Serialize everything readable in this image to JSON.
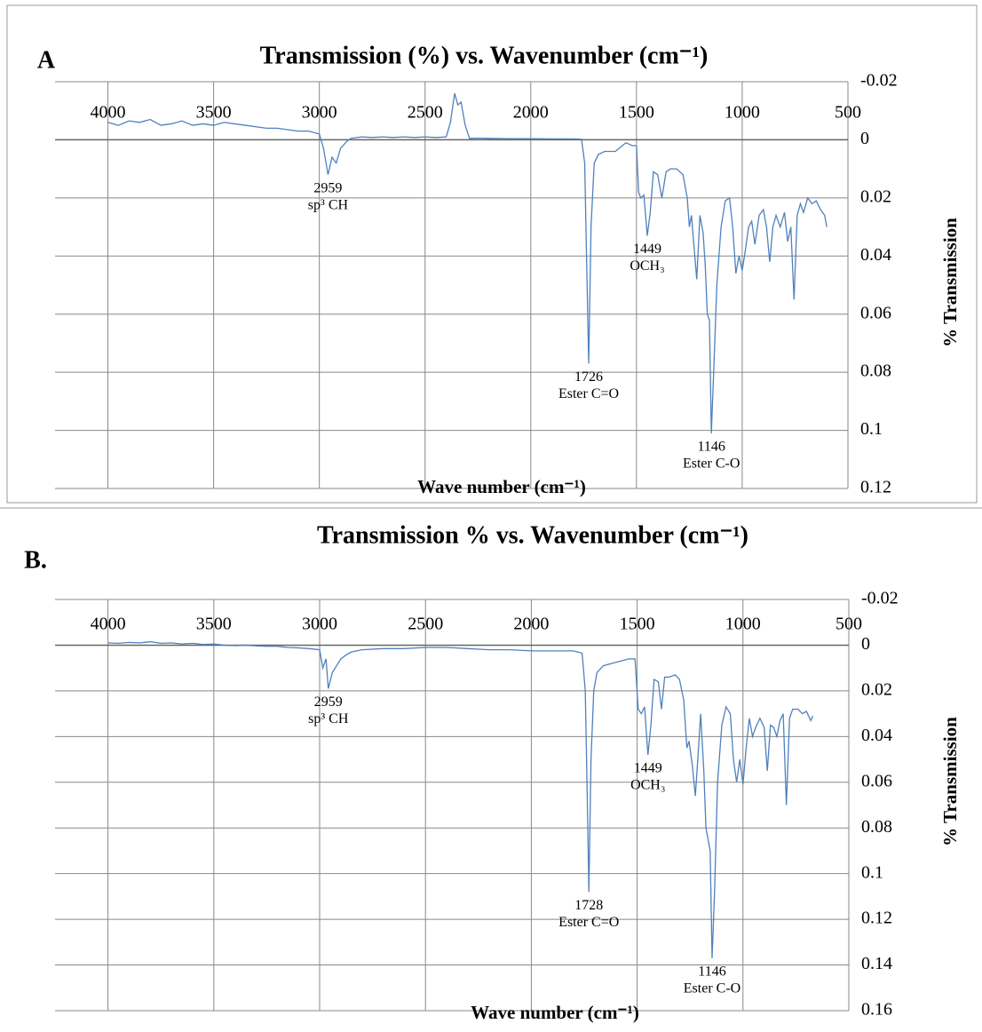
{
  "chart_data": [
    {
      "type": "line",
      "panel_label": "A",
      "title": "Transmission (%) vs. Wavenumber (cm⁻¹)",
      "x_label": "Wave number (cm⁻¹)",
      "y_label": "% Transmission",
      "color": "#4f81bd",
      "xlim": [
        500,
        4250
      ],
      "x_reversed": true,
      "xticks": [
        4000,
        3500,
        3000,
        2500,
        2000,
        1500,
        1000,
        500
      ],
      "ylim": [
        -0.02,
        0.12
      ],
      "y_reversed": true,
      "yticks": [
        -0.02,
        0,
        0.02,
        0.04,
        0.06,
        0.08,
        0.1,
        0.12
      ],
      "grid": true,
      "x": [
        4000,
        3950,
        3900,
        3850,
        3800,
        3750,
        3700,
        3650,
        3600,
        3550,
        3500,
        3450,
        3400,
        3350,
        3300,
        3250,
        3200,
        3150,
        3100,
        3050,
        3000,
        2980,
        2959,
        2940,
        2920,
        2900,
        2870,
        2850,
        2800,
        2750,
        2700,
        2650,
        2600,
        2550,
        2500,
        2450,
        2400,
        2380,
        2360,
        2345,
        2330,
        2310,
        2290,
        2250,
        2200,
        2100,
        2000,
        1900,
        1800,
        1760,
        1745,
        1735,
        1726,
        1715,
        1700,
        1680,
        1650,
        1600,
        1550,
        1520,
        1500,
        1490,
        1480,
        1465,
        1449,
        1435,
        1420,
        1400,
        1380,
        1360,
        1340,
        1310,
        1280,
        1260,
        1250,
        1240,
        1230,
        1215,
        1200,
        1185,
        1175,
        1165,
        1155,
        1146,
        1135,
        1120,
        1100,
        1080,
        1060,
        1045,
        1030,
        1015,
        1000,
        985,
        970,
        955,
        940,
        920,
        900,
        885,
        870,
        855,
        840,
        820,
        800,
        785,
        770,
        755,
        740,
        725,
        710,
        690,
        670,
        650,
        630,
        610,
        600
      ],
      "values": [
        -0.006,
        -0.005,
        -0.0065,
        -0.006,
        -0.007,
        -0.005,
        -0.0055,
        -0.0065,
        -0.005,
        -0.0055,
        -0.005,
        -0.006,
        -0.0055,
        -0.005,
        -0.0045,
        -0.004,
        -0.004,
        -0.0035,
        -0.003,
        -0.003,
        -0.002,
        0.003,
        0.012,
        0.006,
        0.008,
        0.003,
        0.0005,
        -0.0005,
        -0.001,
        -0.0008,
        -0.001,
        -0.0008,
        -0.001,
        -0.0008,
        -0.001,
        -0.0008,
        -0.001,
        -0.006,
        -0.016,
        -0.012,
        -0.013,
        -0.005,
        -0.0005,
        -0.0006,
        -0.0005,
        -0.0004,
        -0.0004,
        -0.0003,
        -0.0003,
        -0.0002,
        0.008,
        0.045,
        0.077,
        0.03,
        0.008,
        0.005,
        0.004,
        0.004,
        0.001,
        0.002,
        0.002,
        0.018,
        0.02,
        0.019,
        0.033,
        0.025,
        0.011,
        0.012,
        0.02,
        0.011,
        0.01,
        0.01,
        0.012,
        0.02,
        0.03,
        0.026,
        0.035,
        0.048,
        0.026,
        0.032,
        0.043,
        0.06,
        0.062,
        0.101,
        0.08,
        0.05,
        0.03,
        0.021,
        0.02,
        0.03,
        0.046,
        0.04,
        0.045,
        0.038,
        0.03,
        0.028,
        0.036,
        0.026,
        0.024,
        0.03,
        0.042,
        0.03,
        0.026,
        0.03,
        0.025,
        0.035,
        0.03,
        0.055,
        0.026,
        0.022,
        0.025,
        0.02,
        0.022,
        0.021,
        0.024,
        0.026,
        0.03
      ],
      "annotations": [
        {
          "value": 2959,
          "label": "sp³ CH"
        },
        {
          "value": 1449,
          "label": "OCH₃"
        },
        {
          "value": 1726,
          "label": "Ester C=O"
        },
        {
          "value": 1146,
          "label": "Ester C-O"
        }
      ]
    },
    {
      "type": "line",
      "panel_label": "B.",
      "title": "Transmission % vs. Wavenumber (cm⁻¹)",
      "x_label": "Wave number (cm⁻¹)",
      "y_label": "% Transmission",
      "color": "#4f81bd",
      "xlim": [
        500,
        4250
      ],
      "x_reversed": true,
      "xticks": [
        4000,
        3500,
        3000,
        2500,
        2000,
        1500,
        1000,
        500
      ],
      "ylim": [
        -0.02,
        0.16
      ],
      "y_reversed": true,
      "yticks": [
        -0.02,
        0,
        0.02,
        0.04,
        0.06,
        0.08,
        0.1,
        0.12,
        0.14,
        0.16
      ],
      "grid": true,
      "x": [
        4000,
        3950,
        3900,
        3850,
        3800,
        3750,
        3700,
        3650,
        3600,
        3550,
        3500,
        3450,
        3400,
        3350,
        3300,
        3250,
        3200,
        3150,
        3100,
        3050,
        3000,
        2985,
        2970,
        2959,
        2940,
        2920,
        2900,
        2870,
        2850,
        2800,
        2700,
        2600,
        2500,
        2400,
        2300,
        2200,
        2100,
        2000,
        1900,
        1800,
        1760,
        1745,
        1735,
        1728,
        1718,
        1705,
        1690,
        1660,
        1620,
        1580,
        1540,
        1510,
        1495,
        1480,
        1465,
        1449,
        1435,
        1420,
        1400,
        1385,
        1370,
        1350,
        1320,
        1300,
        1280,
        1265,
        1255,
        1240,
        1225,
        1210,
        1200,
        1185,
        1175,
        1165,
        1155,
        1146,
        1135,
        1120,
        1100,
        1080,
        1060,
        1045,
        1030,
        1015,
        1000,
        985,
        970,
        955,
        940,
        920,
        900,
        885,
        870,
        855,
        840,
        825,
        810,
        795,
        780,
        765,
        740,
        720,
        700,
        680,
        670
      ],
      "values": [
        -0.001,
        -0.0008,
        -0.0012,
        -0.001,
        -0.0015,
        -0.0008,
        -0.001,
        -0.0005,
        -0.0008,
        -0.0003,
        -0.0005,
        0,
        0.0002,
        0,
        0.0003,
        0.0005,
        0.0005,
        0.001,
        0.0012,
        0.0015,
        0.002,
        0.01,
        0.006,
        0.019,
        0.012,
        0.009,
        0.006,
        0.004,
        0.003,
        0.002,
        0.0015,
        0.0015,
        0.001,
        0.001,
        0.0015,
        0.002,
        0.002,
        0.0025,
        0.0025,
        0.0025,
        0.0035,
        0.02,
        0.07,
        0.108,
        0.05,
        0.02,
        0.012,
        0.009,
        0.008,
        0.007,
        0.006,
        0.006,
        0.028,
        0.03,
        0.027,
        0.048,
        0.035,
        0.015,
        0.016,
        0.028,
        0.014,
        0.014,
        0.013,
        0.015,
        0.024,
        0.045,
        0.042,
        0.052,
        0.066,
        0.045,
        0.03,
        0.055,
        0.08,
        0.085,
        0.09,
        0.137,
        0.11,
        0.06,
        0.035,
        0.027,
        0.03,
        0.05,
        0.06,
        0.05,
        0.061,
        0.045,
        0.032,
        0.04,
        0.036,
        0.032,
        0.036,
        0.055,
        0.035,
        0.036,
        0.04,
        0.033,
        0.03,
        0.07,
        0.032,
        0.028,
        0.028,
        0.03,
        0.029,
        0.033,
        0.031
      ],
      "annotations": [
        {
          "value": 2959,
          "label": "sp³ CH"
        },
        {
          "value": 1449,
          "label": "OCH₃"
        },
        {
          "value": 1728,
          "label": "Ester C=O"
        },
        {
          "value": 1146,
          "label": "Ester C-O"
        }
      ]
    }
  ]
}
